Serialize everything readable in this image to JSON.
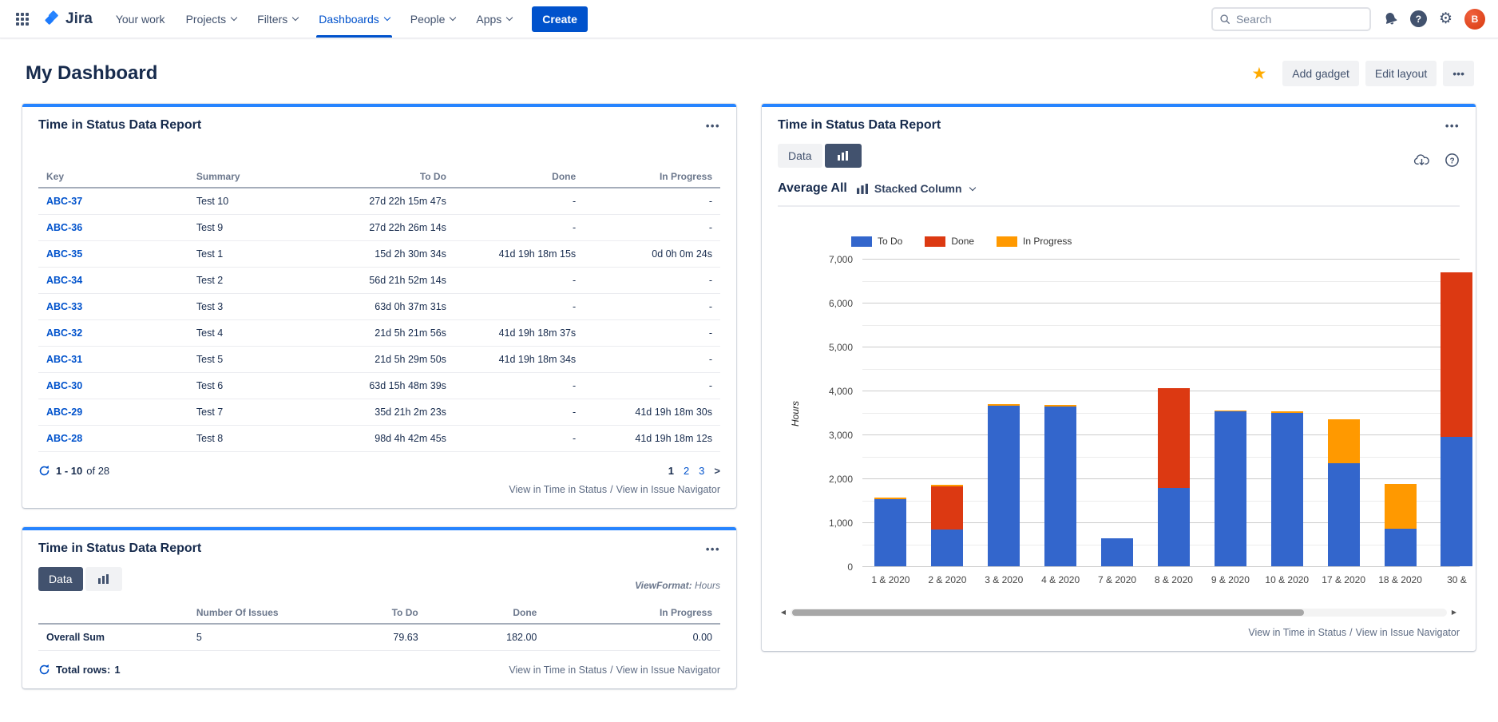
{
  "nav": {
    "logo_text": "Jira",
    "items": [
      "Your work",
      "Projects",
      "Filters",
      "Dashboards",
      "People",
      "Apps"
    ],
    "create_label": "Create",
    "search_placeholder": "Search",
    "avatar_initial": "B"
  },
  "ui": {
    "ellipsis": "•••",
    "next_arrow": ">",
    "scroll_left": "◀",
    "scroll_right": "▶",
    "star_icon": "★",
    "gear_icon": "⚙",
    "link_separator": "/"
  },
  "page": {
    "title": "My Dashboard",
    "actions": {
      "add_gadget": "Add gadget",
      "edit_layout": "Edit layout"
    }
  },
  "footer_links": {
    "time_in_status": "View in Time in Status",
    "issue_navigator": "View in Issue Navigator"
  },
  "gadget_issues": {
    "title": "Time in Status Data Report",
    "columns": {
      "key": "Key",
      "summary": "Summary",
      "todo": "To Do",
      "done": "Done",
      "in_progress": "In Progress"
    },
    "rows": [
      {
        "key": "ABC-37",
        "summary": "Test 10",
        "todo": "27d 22h 15m 47s",
        "done": "-",
        "in_progress": "-"
      },
      {
        "key": "ABC-36",
        "summary": "Test 9",
        "todo": "27d 22h 26m 14s",
        "done": "-",
        "in_progress": "-"
      },
      {
        "key": "ABC-35",
        "summary": "Test 1",
        "todo": "15d 2h 30m 34s",
        "done": "41d 19h 18m 15s",
        "in_progress": "0d 0h 0m 24s"
      },
      {
        "key": "ABC-34",
        "summary": "Test 2",
        "todo": "56d 21h 52m 14s",
        "done": "-",
        "in_progress": "-"
      },
      {
        "key": "ABC-33",
        "summary": "Test 3",
        "todo": "63d 0h 37m 31s",
        "done": "-",
        "in_progress": "-"
      },
      {
        "key": "ABC-32",
        "summary": "Test 4",
        "todo": "21d 5h 21m 56s",
        "done": "41d 19h 18m 37s",
        "in_progress": "-"
      },
      {
        "key": "ABC-31",
        "summary": "Test 5",
        "todo": "21d 5h 29m 50s",
        "done": "41d 19h 18m 34s",
        "in_progress": "-"
      },
      {
        "key": "ABC-30",
        "summary": "Test 6",
        "todo": "63d 15h 48m 39s",
        "done": "-",
        "in_progress": "-"
      },
      {
        "key": "ABC-29",
        "summary": "Test 7",
        "todo": "35d 21h 2m 23s",
        "done": "-",
        "in_progress": "41d 19h 18m 30s"
      },
      {
        "key": "ABC-28",
        "summary": "Test 8",
        "todo": "98d 4h 42m 45s",
        "done": "-",
        "in_progress": "41d 19h 18m 12s"
      }
    ],
    "pagination": {
      "range": "1 - 10",
      "of_label": "of 28",
      "page1": "1",
      "page2": "2",
      "page3": "3"
    }
  },
  "gadget_sum": {
    "title": "Time in Status Data Report",
    "data_tab": "Data",
    "viewformat_label": "ViewFormat:",
    "viewformat_value": "Hours",
    "columns": {
      "issues": "Number Of Issues",
      "todo": "To Do",
      "done": "Done",
      "in_progress": "In Progress"
    },
    "row": {
      "label": "Overall Sum",
      "issues": "5",
      "todo": "79.63",
      "done": "182.00",
      "in_progress": "0.00"
    },
    "total_rows_label": "Total rows:",
    "total_rows_value": "1"
  },
  "gadget_chart": {
    "title": "Time in Status Data Report",
    "data_tab": "Data",
    "average_label": "Average All",
    "chart_type": "Stacked Column"
  },
  "chart_data": {
    "type": "bar",
    "stacked": true,
    "title": "Average All - Stacked Column",
    "categories": [
      "1 & 2020",
      "2 & 2020",
      "3 & 2020",
      "4 & 2020",
      "7 & 2020",
      "8 & 2020",
      "9 & 2020",
      "10 & 2020",
      "17 & 2020",
      "18 & 2020",
      "30 &"
    ],
    "series": [
      {
        "name": "To Do",
        "color": "#3366CC",
        "values": [
          1530,
          830,
          3650,
          3630,
          640,
          1790,
          3520,
          3500,
          2340,
          860,
          2940
        ]
      },
      {
        "name": "Done",
        "color": "#DC3912",
        "values": [
          0,
          990,
          0,
          0,
          0,
          2260,
          0,
          0,
          0,
          0,
          3760
        ]
      },
      {
        "name": "In Progress",
        "color": "#FF9900",
        "values": [
          30,
          30,
          40,
          40,
          0,
          0,
          30,
          30,
          1010,
          1020,
          0
        ]
      }
    ],
    "xlabel": "",
    "ylabel": "Hours",
    "ylim": [
      0,
      7000
    ],
    "ytick_step": 1000,
    "minor_step": 500,
    "legend_position": "top",
    "grid": true
  },
  "colors": {
    "accent": "#0052CC",
    "panel_accent": "#2684FF",
    "avatar": "#DE350B",
    "star": "#FFAB00"
  }
}
